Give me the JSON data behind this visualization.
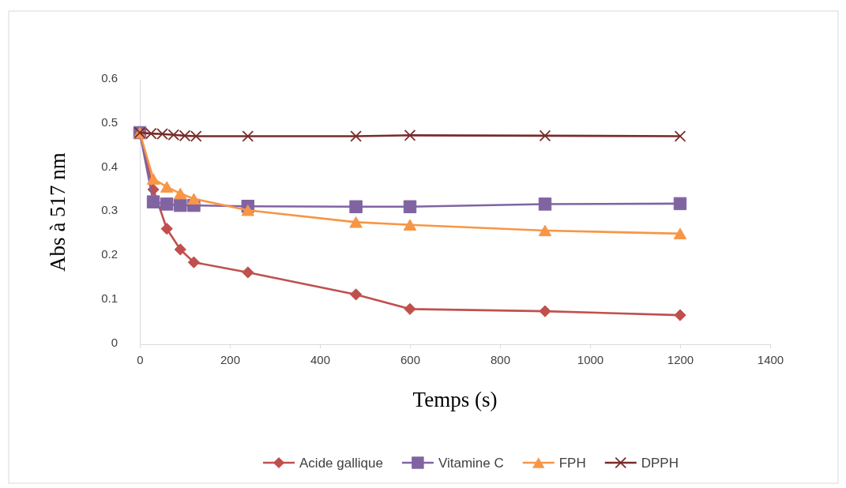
{
  "chart_data": {
    "type": "line",
    "xlabel": "Temps (s)",
    "ylabel": "Abs à 517 nm",
    "xlim": [
      0,
      1400
    ],
    "xticks": [
      0,
      200,
      400,
      600,
      800,
      1000,
      1200,
      1400
    ],
    "ylim": [
      0,
      0.6
    ],
    "yticks": [
      0,
      0.1,
      0.2,
      0.3,
      0.4,
      0.5,
      0.6
    ],
    "grid": false,
    "legend": "bottom",
    "series": [
      {
        "name": "Acide gallique",
        "color": "#c0504d",
        "marker": "diamond",
        "x": [
          0,
          30,
          60,
          90,
          120,
          240,
          480,
          600,
          900,
          1200
        ],
        "values": [
          0.48,
          0.351,
          0.262,
          0.215,
          0.186,
          0.163,
          0.113,
          0.08,
          0.075,
          0.066
        ]
      },
      {
        "name": "Vitamine C",
        "color": "#8064a2",
        "marker": "square",
        "x": [
          0,
          30,
          60,
          90,
          120,
          240,
          480,
          600,
          900,
          1200
        ],
        "values": [
          0.48,
          0.323,
          0.318,
          0.315,
          0.315,
          0.313,
          0.312,
          0.312,
          0.318,
          0.319
        ]
      },
      {
        "name": "FPH",
        "color": "#f79646",
        "marker": "triangle",
        "x": [
          0,
          30,
          60,
          90,
          120,
          240,
          480,
          600,
          900,
          1200
        ],
        "values": [
          0.48,
          0.375,
          0.357,
          0.342,
          0.33,
          0.304,
          0.277,
          0.271,
          0.258,
          0.251
        ]
      },
      {
        "name": "DPPH",
        "color": "#772c2a",
        "marker": "cross",
        "x": [
          0,
          25,
          50,
          75,
          100,
          125,
          240,
          480,
          600,
          900,
          1200
        ],
        "values": [
          0.48,
          0.478,
          0.477,
          0.475,
          0.473,
          0.472,
          0.472,
          0.472,
          0.474,
          0.473,
          0.472
        ]
      }
    ]
  }
}
